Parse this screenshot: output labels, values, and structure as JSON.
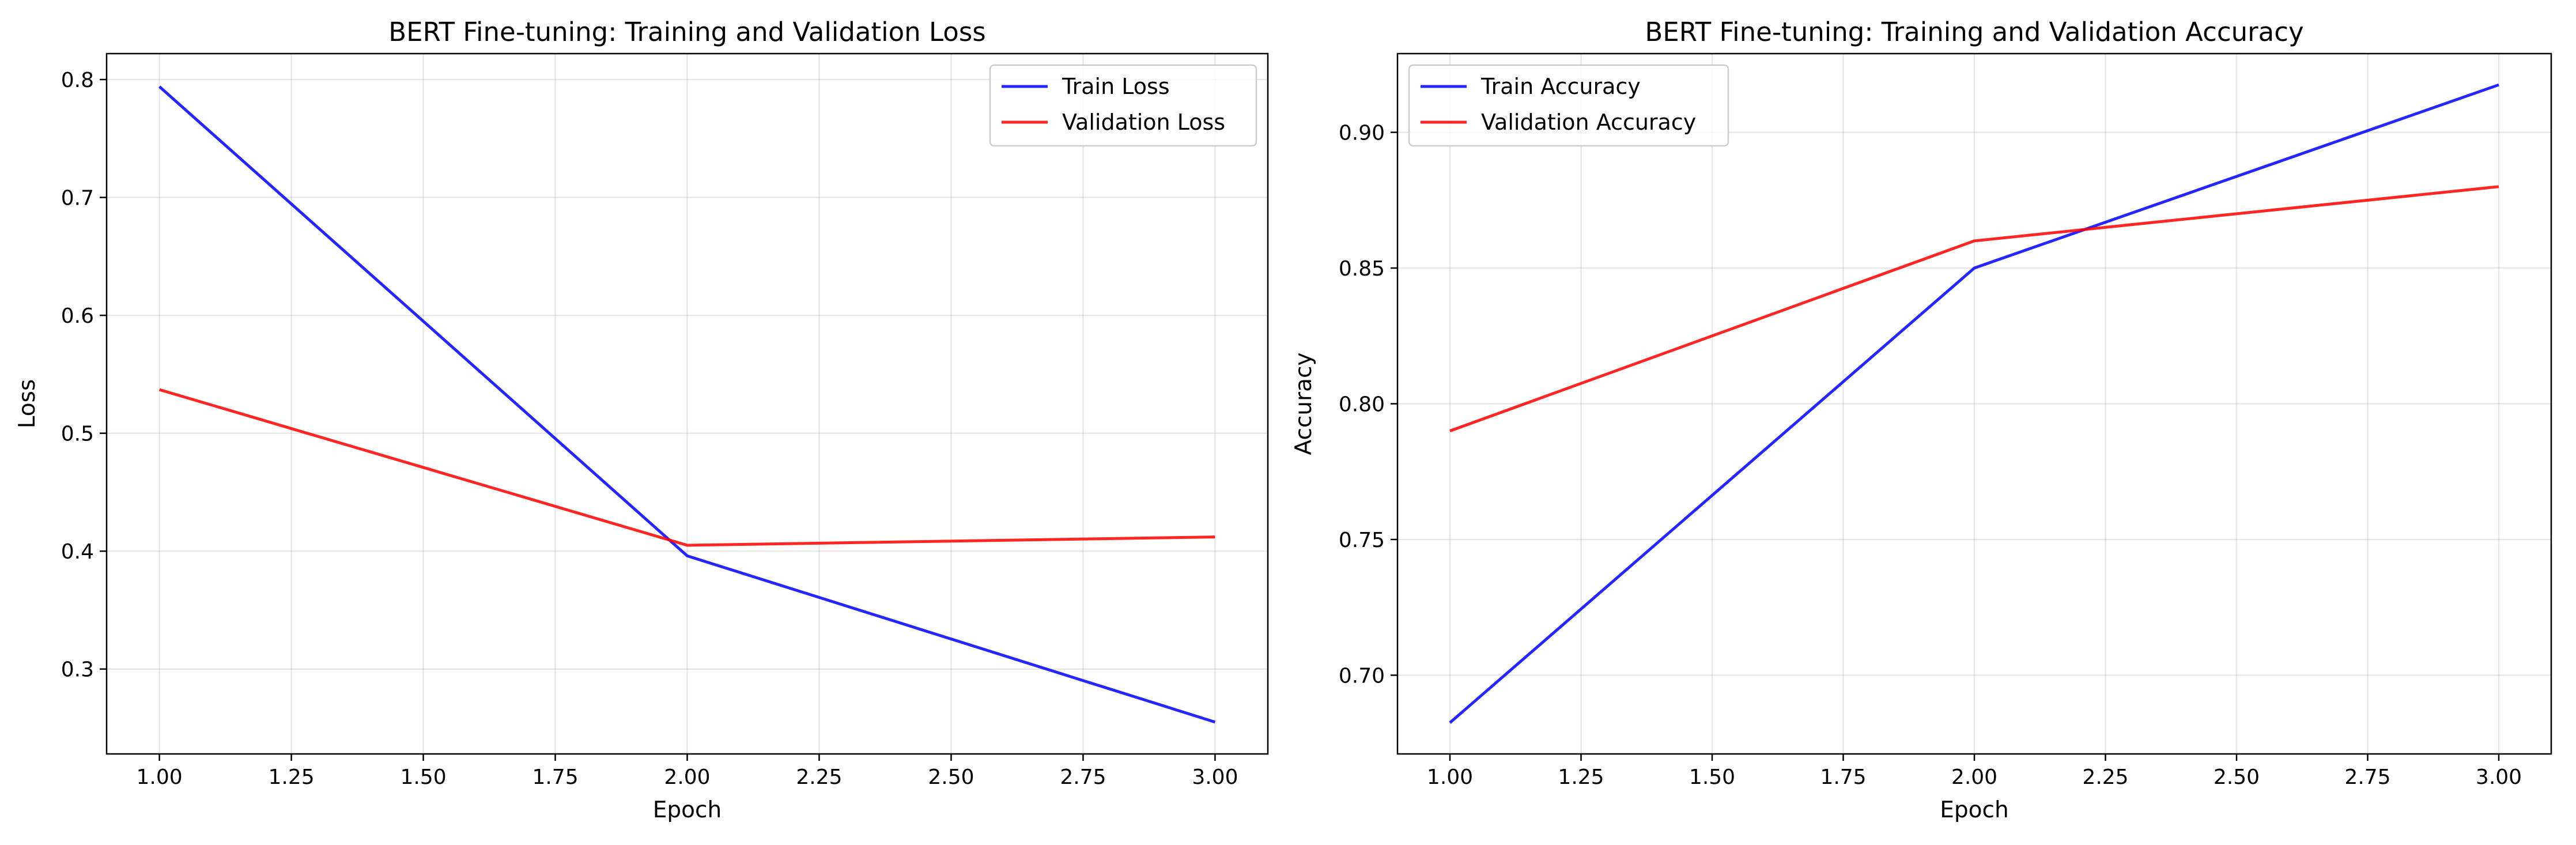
{
  "chart_data": [
    {
      "type": "line",
      "title": "BERT Fine-tuning: Training and Validation Loss",
      "xlabel": "Epoch",
      "ylabel": "Loss",
      "x": [
        1,
        2,
        3
      ],
      "xlim": [
        0.9,
        3.1
      ],
      "ylim": [
        0.228,
        0.822
      ],
      "xticks": [
        "1.00",
        "1.25",
        "1.50",
        "1.75",
        "2.00",
        "2.25",
        "2.50",
        "2.75",
        "3.00"
      ],
      "xtick_values": [
        1.0,
        1.25,
        1.5,
        1.75,
        2.0,
        2.25,
        2.5,
        2.75,
        3.0
      ],
      "yticks": [
        "0.3",
        "0.4",
        "0.5",
        "0.6",
        "0.7",
        "0.8"
      ],
      "ytick_values": [
        0.3,
        0.4,
        0.5,
        0.6,
        0.7,
        0.8
      ],
      "grid": true,
      "legend_position": "upper right",
      "series": [
        {
          "name": "Train Loss",
          "color": "#0000ff",
          "values": [
            0.794,
            0.396,
            0.255
          ]
        },
        {
          "name": "Validation Loss",
          "color": "#ff0000",
          "values": [
            0.537,
            0.405,
            0.412
          ]
        }
      ]
    },
    {
      "type": "line",
      "title": "BERT Fine-tuning: Training and Validation Accuracy",
      "xlabel": "Epoch",
      "ylabel": "Accuracy",
      "x": [
        1,
        2,
        3
      ],
      "xlim": [
        0.9,
        3.1
      ],
      "ylim": [
        0.671,
        0.929
      ],
      "xticks": [
        "1.00",
        "1.25",
        "1.50",
        "1.75",
        "2.00",
        "2.25",
        "2.50",
        "2.75",
        "3.00"
      ],
      "xtick_values": [
        1.0,
        1.25,
        1.5,
        1.75,
        2.0,
        2.25,
        2.5,
        2.75,
        3.0
      ],
      "yticks": [
        "0.70",
        "0.75",
        "0.80",
        "0.85",
        "0.90"
      ],
      "ytick_values": [
        0.7,
        0.75,
        0.8,
        0.85,
        0.9
      ],
      "grid": true,
      "legend_position": "upper left",
      "series": [
        {
          "name": "Train Accuracy",
          "color": "#0000ff",
          "values": [
            0.6825,
            0.85,
            0.9175
          ]
        },
        {
          "name": "Validation Accuracy",
          "color": "#ff0000",
          "values": [
            0.79,
            0.86,
            0.88
          ]
        }
      ]
    }
  ]
}
